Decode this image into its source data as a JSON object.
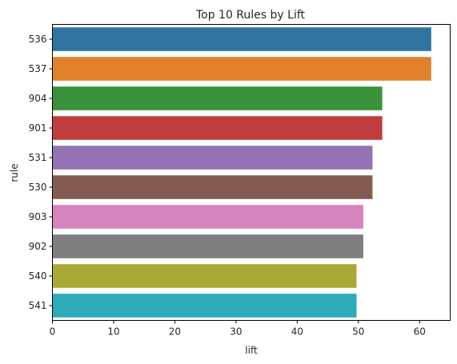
{
  "chart_data": {
    "type": "bar",
    "orientation": "horizontal",
    "title": "Top 10 Rules by Lift",
    "xlabel": "lift",
    "ylabel": "rule",
    "xlim": [
      0,
      65
    ],
    "xticks": [
      0,
      10,
      20,
      30,
      40,
      50,
      60
    ],
    "grid": false,
    "categories": [
      "536",
      "537",
      "904",
      "901",
      "531",
      "530",
      "903",
      "902",
      "540",
      "541"
    ],
    "values": [
      61.9,
      61.9,
      53.9,
      53.9,
      52.3,
      52.3,
      50.8,
      50.8,
      49.7,
      49.7
    ],
    "colors": [
      "#3274a1",
      "#e1812c",
      "#3a923a",
      "#c03d3e",
      "#9372b2",
      "#845b53",
      "#d684bd",
      "#7f7f7f",
      "#a9aa35",
      "#2eabb8"
    ]
  }
}
